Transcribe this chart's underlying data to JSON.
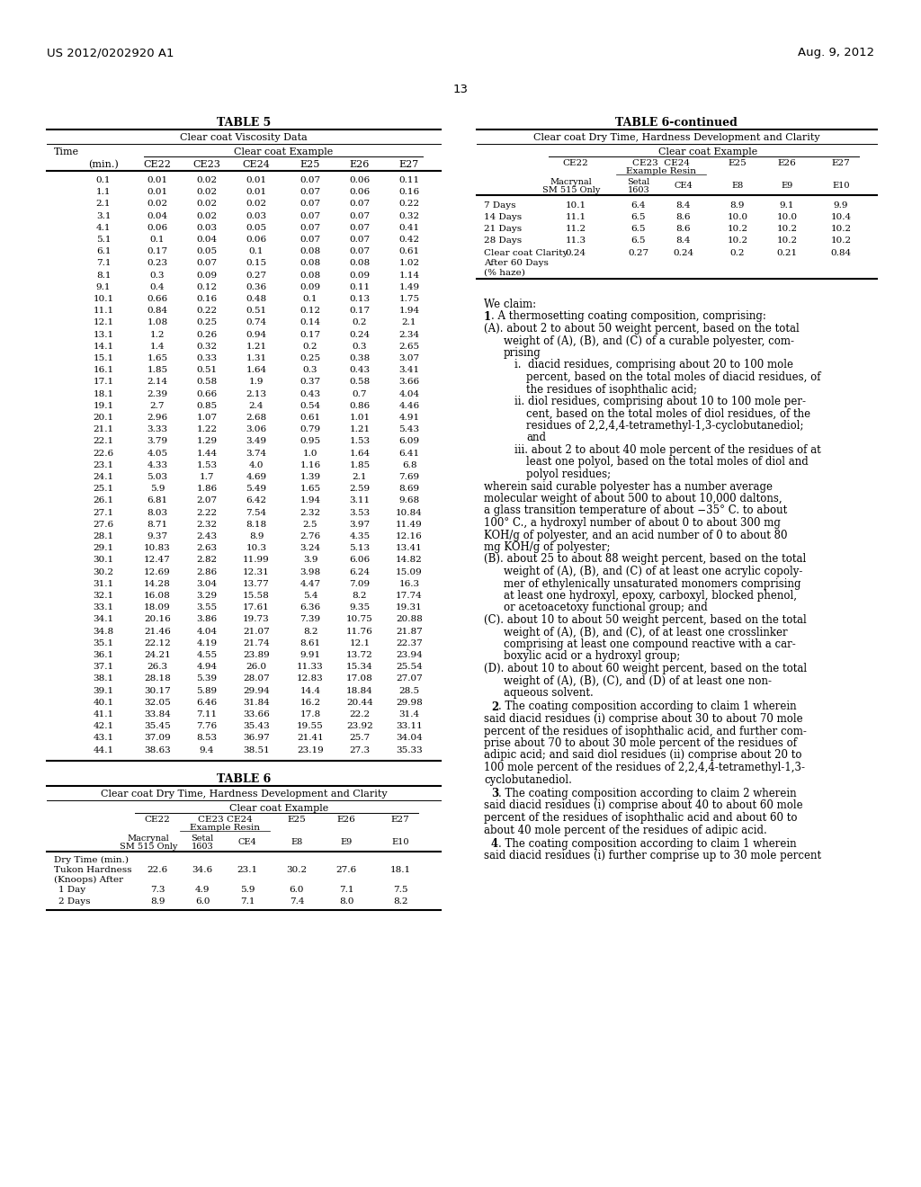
{
  "header_left": "US 2012/0202920 A1",
  "header_right": "Aug. 9, 2012",
  "page_number": "13",
  "table5_title": "TABLE 5",
  "table5_subtitle": "Clear coat Viscosity Data",
  "table5_columns": [
    "CE22",
    "CE23",
    "CE24",
    "E25",
    "E26",
    "E27"
  ],
  "table5_data": [
    [
      0.1,
      0.01,
      0.02,
      0.01,
      0.07,
      0.06,
      0.11
    ],
    [
      1.1,
      0.01,
      0.02,
      0.01,
      0.07,
      0.06,
      0.16
    ],
    [
      2.1,
      0.02,
      0.02,
      0.02,
      0.07,
      0.07,
      0.22
    ],
    [
      3.1,
      0.04,
      0.02,
      0.03,
      0.07,
      0.07,
      0.32
    ],
    [
      4.1,
      0.06,
      0.03,
      0.05,
      0.07,
      0.07,
      0.41
    ],
    [
      5.1,
      0.1,
      0.04,
      0.06,
      0.07,
      0.07,
      0.42
    ],
    [
      6.1,
      0.17,
      0.05,
      0.1,
      0.08,
      0.07,
      0.61
    ],
    [
      7.1,
      0.23,
      0.07,
      0.15,
      0.08,
      0.08,
      1.02
    ],
    [
      8.1,
      0.3,
      0.09,
      0.27,
      0.08,
      0.09,
      1.14
    ],
    [
      9.1,
      0.4,
      0.12,
      0.36,
      0.09,
      0.11,
      1.49
    ],
    [
      10.1,
      0.66,
      0.16,
      0.48,
      0.1,
      0.13,
      1.75
    ],
    [
      11.1,
      0.84,
      0.22,
      0.51,
      0.12,
      0.17,
      1.94
    ],
    [
      12.1,
      1.08,
      0.25,
      0.74,
      0.14,
      0.2,
      2.1
    ],
    [
      13.1,
      1.2,
      0.26,
      0.94,
      0.17,
      0.24,
      2.34
    ],
    [
      14.1,
      1.4,
      0.32,
      1.21,
      0.2,
      0.3,
      2.65
    ],
    [
      15.1,
      1.65,
      0.33,
      1.31,
      0.25,
      0.38,
      3.07
    ],
    [
      16.1,
      1.85,
      0.51,
      1.64,
      0.3,
      0.43,
      3.41
    ],
    [
      17.1,
      2.14,
      0.58,
      1.9,
      0.37,
      0.58,
      3.66
    ],
    [
      18.1,
      2.39,
      0.66,
      2.13,
      0.43,
      0.7,
      4.04
    ],
    [
      19.1,
      2.7,
      0.85,
      2.4,
      0.54,
      0.86,
      4.46
    ],
    [
      20.1,
      2.96,
      1.07,
      2.68,
      0.61,
      1.01,
      4.91
    ],
    [
      21.1,
      3.33,
      1.22,
      3.06,
      0.79,
      1.21,
      5.43
    ],
    [
      22.1,
      3.79,
      1.29,
      3.49,
      0.95,
      1.53,
      6.09
    ],
    [
      22.6,
      4.05,
      1.44,
      3.74,
      1.0,
      1.64,
      6.41
    ],
    [
      23.1,
      4.33,
      1.53,
      4.0,
      1.16,
      1.85,
      6.8
    ],
    [
      24.1,
      5.03,
      1.7,
      4.69,
      1.39,
      2.1,
      7.69
    ],
    [
      25.1,
      5.9,
      1.86,
      5.49,
      1.65,
      2.59,
      8.69
    ],
    [
      26.1,
      6.81,
      2.07,
      6.42,
      1.94,
      3.11,
      9.68
    ],
    [
      27.1,
      8.03,
      2.22,
      7.54,
      2.32,
      3.53,
      10.84
    ],
    [
      27.6,
      8.71,
      2.32,
      8.18,
      2.5,
      3.97,
      11.49
    ],
    [
      28.1,
      9.37,
      2.43,
      8.9,
      2.76,
      4.35,
      12.16
    ],
    [
      29.1,
      10.83,
      2.63,
      10.3,
      3.24,
      5.13,
      13.41
    ],
    [
      30.1,
      12.47,
      2.82,
      11.99,
      3.9,
      6.06,
      14.82
    ],
    [
      30.2,
      12.69,
      2.86,
      12.31,
      3.98,
      6.24,
      15.09
    ],
    [
      31.1,
      14.28,
      3.04,
      13.77,
      4.47,
      7.09,
      16.3
    ],
    [
      32.1,
      16.08,
      3.29,
      15.58,
      5.4,
      8.2,
      17.74
    ],
    [
      33.1,
      18.09,
      3.55,
      17.61,
      6.36,
      9.35,
      19.31
    ],
    [
      34.1,
      20.16,
      3.86,
      19.73,
      7.39,
      10.75,
      20.88
    ],
    [
      34.8,
      21.46,
      4.04,
      21.07,
      8.2,
      11.76,
      21.87
    ],
    [
      35.1,
      22.12,
      4.19,
      21.74,
      8.61,
      12.1,
      22.37
    ],
    [
      36.1,
      24.21,
      4.55,
      23.89,
      9.91,
      13.72,
      23.94
    ],
    [
      37.1,
      26.3,
      4.94,
      26.0,
      11.33,
      15.34,
      25.54
    ],
    [
      38.1,
      28.18,
      5.39,
      28.07,
      12.83,
      17.08,
      27.07
    ],
    [
      39.1,
      30.17,
      5.89,
      29.94,
      14.4,
      18.84,
      28.5
    ],
    [
      40.1,
      32.05,
      6.46,
      31.84,
      16.2,
      20.44,
      29.98
    ],
    [
      41.1,
      33.84,
      7.11,
      33.66,
      17.8,
      22.2,
      31.4
    ],
    [
      42.1,
      35.45,
      7.76,
      35.43,
      19.55,
      23.92,
      33.11
    ],
    [
      43.1,
      37.09,
      8.53,
      36.97,
      21.41,
      25.7,
      34.04
    ],
    [
      44.1,
      38.63,
      9.4,
      38.51,
      23.19,
      27.3,
      35.33
    ]
  ],
  "table6_title": "TABLE 6",
  "table6_subtitle": "Clear coat Dry Time, Hardness Development and Clarity",
  "table6_cont_title": "TABLE 6-continued",
  "table6_cont_subtitle": "Clear coat Dry Time, Hardness Development and Clarity",
  "table6_row1_vals": [
    22.6,
    34.6,
    23.1,
    30.2,
    27.6,
    18.1
  ],
  "table6_hardness_rows": [
    [
      "1 Day",
      7.3,
      4.9,
      5.9,
      6.0,
      7.1,
      7.5
    ],
    [
      "2 Days",
      8.9,
      6.0,
      7.1,
      7.4,
      8.0,
      8.2
    ]
  ],
  "table6_cont_rows": [
    [
      "7 Days",
      10.1,
      6.4,
      8.4,
      8.9,
      9.1,
      9.9
    ],
    [
      "14 Days",
      11.1,
      6.5,
      8.6,
      10.0,
      10.0,
      10.4
    ],
    [
      "21 Days",
      11.2,
      6.5,
      8.6,
      10.2,
      10.2,
      10.2
    ],
    [
      "28 Days",
      11.3,
      6.5,
      8.4,
      10.2,
      10.2,
      10.2
    ]
  ],
  "table6_clarity_vals": [
    0.24,
    0.27,
    0.24,
    0.2,
    0.21,
    0.84
  ]
}
